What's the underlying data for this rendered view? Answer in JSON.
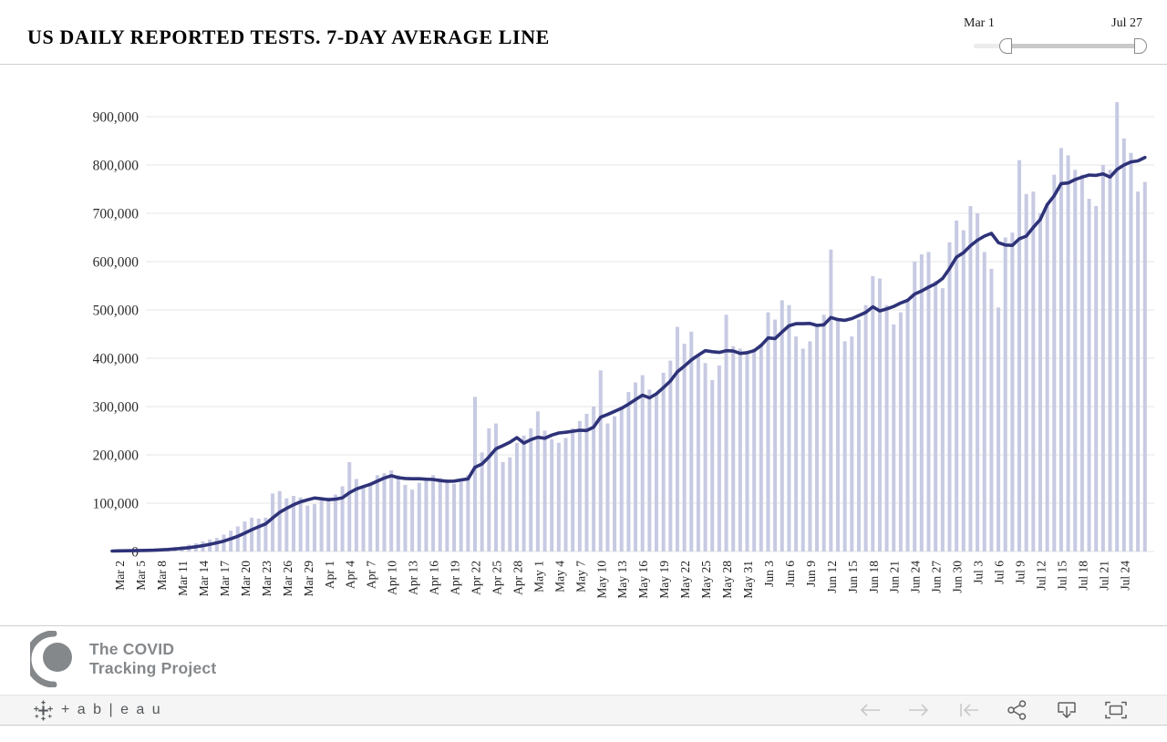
{
  "header": {
    "title": "US DAILY REPORTED TESTS. 7-DAY AVERAGE LINE"
  },
  "slider": {
    "start_label": "Mar 1",
    "end_label": "Jul 27"
  },
  "chart_data": {
    "type": "bar",
    "title": "US DAILY REPORTED TESTS. 7-DAY AVERAGE LINE",
    "x_first_date": "Mar 1",
    "x_last_date": "Jul 27",
    "average_window": 7,
    "grid": true,
    "bar_color": "#c7cae2",
    "line_color": "#2e3278",
    "ylim": [
      0,
      950000
    ],
    "y_tick_values": [
      0,
      100000,
      200000,
      300000,
      400000,
      500000,
      600000,
      700000,
      800000,
      900000
    ],
    "y_tick_labels": [
      "0",
      "100,000",
      "200,000",
      "300,000",
      "400,000",
      "500,000",
      "600,000",
      "700,000",
      "800,000",
      "900,000"
    ],
    "x_tick_labels": [
      "Mar 2",
      "Mar 5",
      "Mar 8",
      "Mar 11",
      "Mar 14",
      "Mar 17",
      "Mar 20",
      "Mar 23",
      "Mar 26",
      "Mar 29",
      "Apr 1",
      "Apr 4",
      "Apr 7",
      "Apr 10",
      "Apr 13",
      "Apr 16",
      "Apr 19",
      "Apr 22",
      "Apr 25",
      "Apr 28",
      "May 1",
      "May 4",
      "May 7",
      "May 10",
      "May 13",
      "May 16",
      "May 19",
      "May 22",
      "May 25",
      "May 28",
      "May 31",
      "Jun 3",
      "Jun 6",
      "Jun 9",
      "Jun 12",
      "Jun 15",
      "Jun 18",
      "Jun 21",
      "Jun 24",
      "Jun 27",
      "Jun 30",
      "Jul 3",
      "Jul 6",
      "Jul 9",
      "Jul 12",
      "Jul 15",
      "Jul 18",
      "Jul 21",
      "Jul 24"
    ],
    "x_tick_first_index": 1,
    "x_tick_step": 3,
    "series": [
      {
        "name": "Daily reported tests",
        "type": "bar",
        "values": [
          1000,
          1500,
          2000,
          2500,
          3000,
          4000,
          5000,
          6000,
          7000,
          9000,
          11000,
          14000,
          17000,
          21000,
          25000,
          28000,
          35000,
          43000,
          52000,
          62000,
          70000,
          68000,
          70000,
          120000,
          125000,
          110000,
          115000,
          112000,
          95000,
          98000,
          108000,
          112000,
          118000,
          135000,
          185000,
          150000,
          132000,
          142000,
          158000,
          162000,
          168000,
          158000,
          138000,
          128000,
          142000,
          152000,
          158000,
          152000,
          148000,
          140000,
          145000,
          158000,
          320000,
          205000,
          255000,
          265000,
          185000,
          195000,
          225000,
          240000,
          255000,
          290000,
          250000,
          232000,
          225000,
          235000,
          255000,
          270000,
          285000,
          300000,
          375000,
          265000,
          280000,
          300000,
          330000,
          350000,
          365000,
          335000,
          325000,
          370000,
          395000,
          465000,
          430000,
          455000,
          405000,
          390000,
          355000,
          385000,
          490000,
          425000,
          420000,
          415000,
          420000,
          430000,
          495000,
          480000,
          520000,
          510000,
          445000,
          420000,
          435000,
          465000,
          490000,
          625000,
          480000,
          435000,
          445000,
          480000,
          510000,
          570000,
          565000,
          510000,
          470000,
          495000,
          520000,
          600000,
          615000,
          620000,
          560000,
          545000,
          640000,
          685000,
          665000,
          715000,
          700000,
          620000,
          585000,
          505000,
          650000,
          660000,
          810000,
          740000,
          745000,
          700000,
          720000,
          780000,
          835000,
          820000,
          790000,
          780000,
          730000,
          715000,
          800000,
          790000,
          930000,
          855000,
          825000,
          745000,
          765000
        ]
      },
      {
        "name": "7-day average",
        "type": "line",
        "derived_from": "Daily reported tests"
      }
    ]
  },
  "footer": {
    "logo_line1": "The COVID",
    "logo_line2": "Tracking Project",
    "tableau_wordmark": "+ a b | e a u",
    "toolbar": [
      "undo",
      "redo",
      "reset",
      "share",
      "download",
      "fullscreen"
    ]
  }
}
